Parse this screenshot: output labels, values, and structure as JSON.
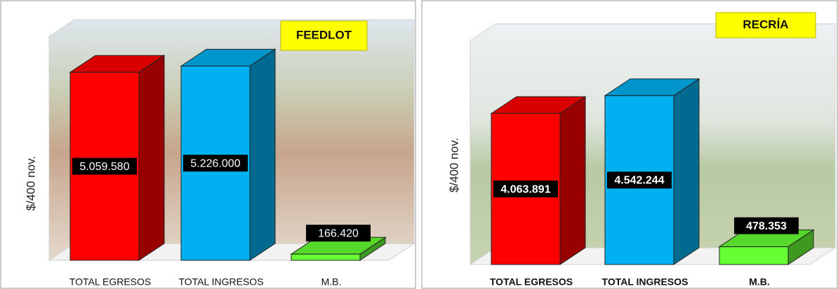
{
  "chart_data": [
    {
      "type": "bar",
      "title": "FEEDLOT",
      "y_label": "$/400 nov.",
      "categories": [
        "TOTAL EGRESOS",
        "TOTAL INGRESOS",
        "M.B."
      ],
      "values": [
        5059580,
        5226000,
        166420
      ],
      "value_labels": [
        "5.059.580",
        "5.226.000",
        "166.420"
      ],
      "colors": [
        "#ff0000",
        "#00b0f0",
        "#66ff33"
      ],
      "ylim": [
        0,
        6400000
      ]
    },
    {
      "type": "bar",
      "title": "RECRÍA",
      "y_label": "$/400 nov.",
      "categories": [
        "TOTAL EGRESOS",
        "TOTAL INGRESOS",
        "M.B."
      ],
      "values": [
        4063891,
        4542244,
        478353
      ],
      "value_labels": [
        "4.063.891",
        "4.542.244",
        "478.353"
      ],
      "colors": [
        "#ff0000",
        "#00b0f0",
        "#66ff33"
      ],
      "ylim": [
        0,
        6400000
      ]
    }
  ]
}
